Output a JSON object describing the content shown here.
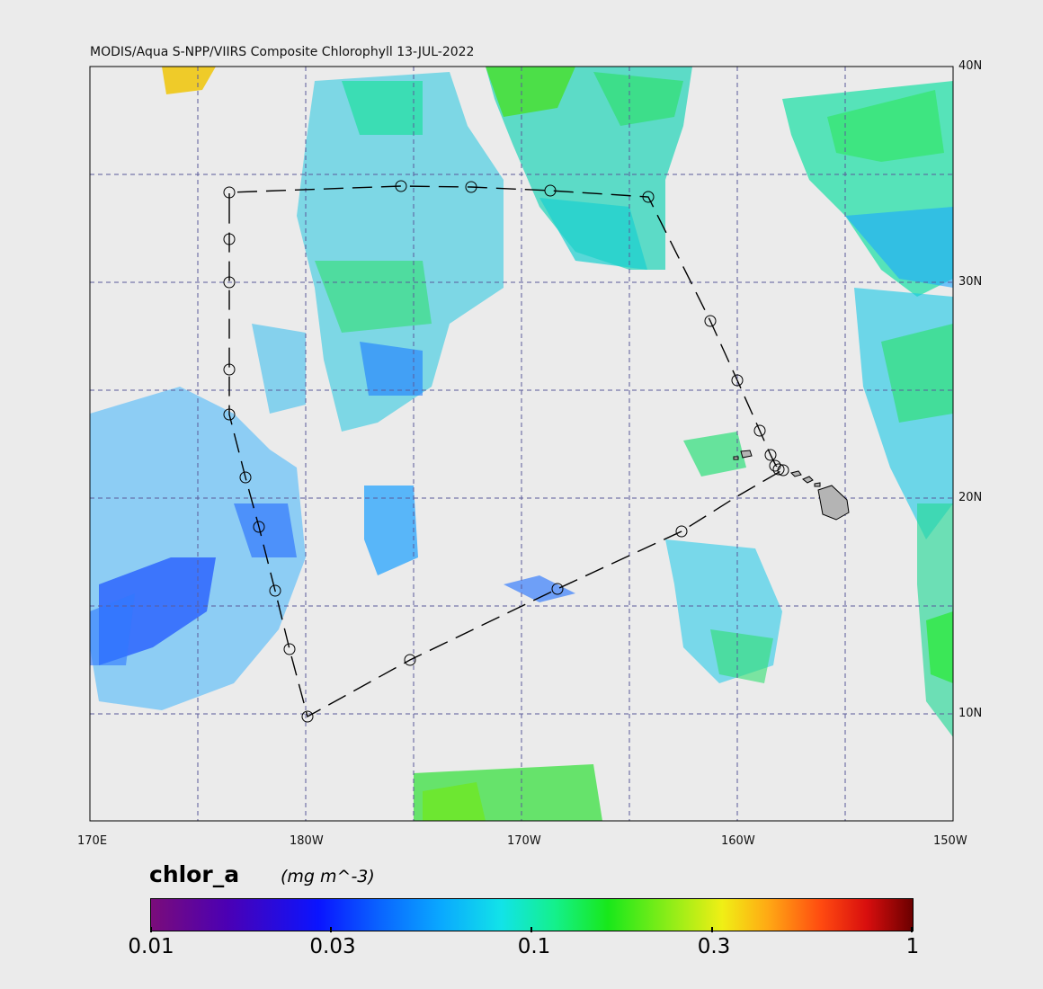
{
  "title": "MODIS/Aqua S-NPP/VIIRS Composite Chlorophyll 13-JUL-2022",
  "map": {
    "lat_labels": [
      "40N",
      "30N",
      "20N",
      "10N"
    ],
    "lon_labels": [
      "170E",
      "180W",
      "170W",
      "160W",
      "150W"
    ],
    "background_color": "#ebebeb",
    "grid_color": "#5a5a9a",
    "land_color": "#b4b4b4",
    "track_color": "#000000"
  },
  "colorbar": {
    "variable": "chlor_a",
    "units": "(mg m^-3)",
    "tick_labels": [
      "0.01",
      "0.03",
      "0.1",
      "0.3",
      "1"
    ],
    "scale": "log"
  }
}
